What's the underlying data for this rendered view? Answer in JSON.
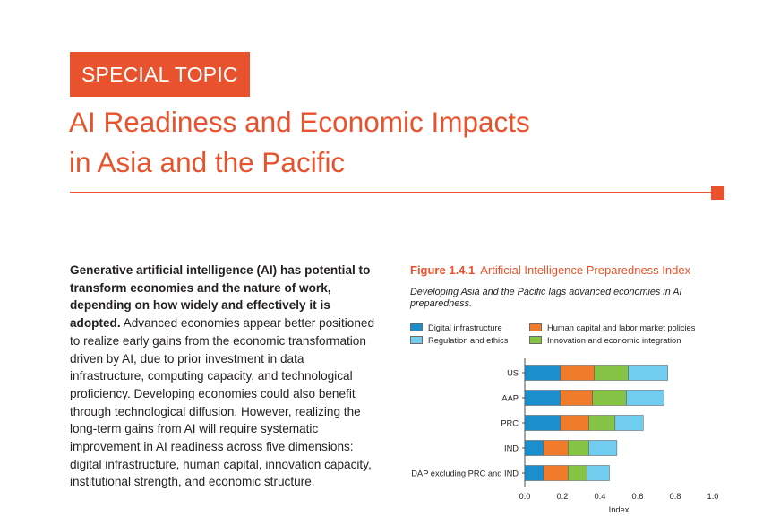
{
  "header": {
    "tag": "SPECIAL TOPIC",
    "title_line1": "AI Readiness and Economic Impacts",
    "title_line2": "in Asia and the Pacific"
  },
  "body": {
    "lead": "Generative artificial intelligence (AI) has potential to transform economies and the nature of work, depending on how widely and effectively it is adopted.",
    "text": " Advanced economies appear better positioned to realize early gains from the economic transformation driven by AI, due to prior investment in data infrastructure, computing capacity, and technological proficiency. Developing economies could also benefit through technological diffusion. However, realizing the long-term gains from AI will require systematic improvement in AI readiness across five dimensions: digital infrastructure, human capital, innovation capacity, institutional strength, and economic structure."
  },
  "figure": {
    "number": "Figure 1.4.1",
    "title": "Artificial Intelligence Preparedness Index",
    "subtitle": "Developing Asia and the Pacific lags advanced economies in AI preparedness."
  },
  "chart_data": {
    "type": "bar",
    "orientation": "horizontal",
    "stacked": true,
    "categories": [
      "US",
      "AAP",
      "PRC",
      "IND",
      "DAP excluding PRC and IND"
    ],
    "series": [
      {
        "name": "Digital infrastructure",
        "color": "#1b8fce",
        "values": [
          0.19,
          0.19,
          0.19,
          0.1,
          0.1
        ]
      },
      {
        "name": "Human capital and labor market policies",
        "color": "#f07b2b",
        "values": [
          0.18,
          0.17,
          0.15,
          0.13,
          0.13
        ]
      },
      {
        "name": "Innovation and economic integration",
        "color": "#86c445",
        "values": [
          0.18,
          0.18,
          0.14,
          0.11,
          0.1
        ]
      },
      {
        "name": "Regulation and ethics",
        "color": "#71cdf0",
        "values": [
          0.21,
          0.2,
          0.15,
          0.15,
          0.12
        ]
      }
    ],
    "legend_order": [
      "Digital infrastructure",
      "Human capital and labor market policies",
      "Regulation and ethics",
      "Innovation and economic integration"
    ],
    "xlabel": "Index",
    "xlim": [
      0,
      1.0
    ],
    "xticks": [
      "0.0",
      "0.2",
      "0.4",
      "0.6",
      "0.8",
      "1.0"
    ],
    "grid": false,
    "legend_position": "top"
  }
}
